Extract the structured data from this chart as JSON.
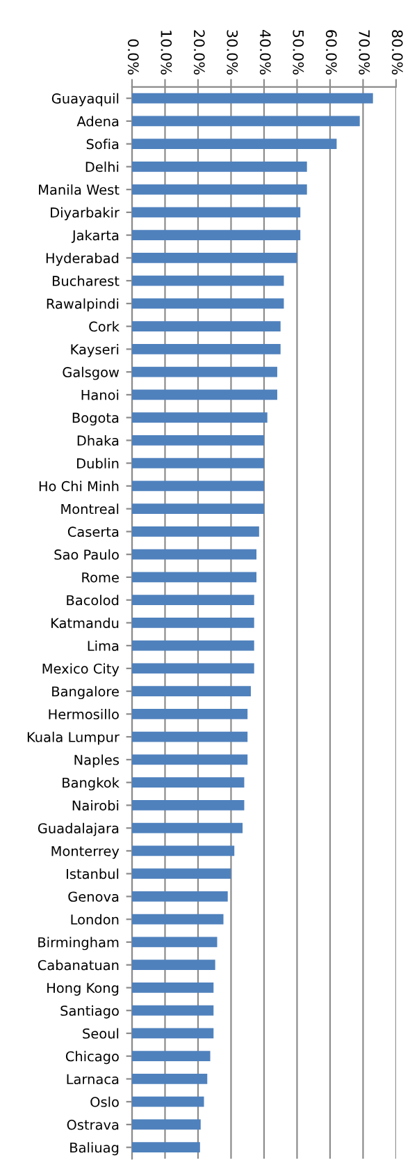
{
  "chart_data": {
    "type": "bar",
    "orientation": "horizontal",
    "categories": [
      "Guayaquil",
      "Adena",
      "Sofia",
      "Delhi",
      "Manila West",
      "Diyarbakir",
      "Jakarta",
      "Hyderabad",
      "Bucharest",
      "Rawalpindi",
      "Cork",
      "Kayseri",
      "Galsgow",
      "Hanoi",
      "Bogota",
      "Dhaka",
      "Dublin",
      "Ho Chi Minh",
      "Montreal",
      "Caserta",
      "Sao Paulo",
      "Rome",
      "Bacolod",
      "Katmandu",
      "Lima",
      "Mexico City",
      "Bangalore",
      "Hermosillo",
      "Kuala Lumpur",
      "Naples",
      "Bangkok",
      "Nairobi",
      "Guadalajara",
      "Monterrey",
      "Istanbul",
      "Genova",
      "London",
      "Birmingham",
      "Cabanatuan",
      "Hong Kong",
      "Santiago",
      "Seoul",
      "Chicago",
      "Larnaca",
      "Oslo",
      "Ostrava",
      "Baliuag"
    ],
    "values": [
      73,
      69,
      62,
      53,
      53,
      51,
      51,
      50,
      46,
      46,
      45,
      45,
      44,
      44,
      41,
      40,
      40,
      40,
      40,
      38.5,
      37.7,
      37.7,
      37,
      37,
      37,
      37,
      36,
      35,
      35,
      35,
      34,
      34,
      33.5,
      31,
      30,
      29,
      27.7,
      25.8,
      25.2,
      24.7,
      24.7,
      24.7,
      23.7,
      22.8,
      21.8,
      20.8,
      20.6
    ],
    "color": "#4f81bd",
    "xlim": [
      0,
      80
    ],
    "xticks": [
      {
        "value": 0,
        "label": "0.0%"
      },
      {
        "value": 10,
        "label": "10.0%"
      },
      {
        "value": 20,
        "label": "20.0%"
      },
      {
        "value": 30,
        "label": "30.0%"
      },
      {
        "value": 40,
        "label": "40.0%"
      },
      {
        "value": 50,
        "label": "50.0%"
      },
      {
        "value": 60,
        "label": "60.0%"
      },
      {
        "value": 70,
        "label": "70.0%"
      },
      {
        "value": 80,
        "label": "80.0%"
      }
    ],
    "grid": "x"
  }
}
